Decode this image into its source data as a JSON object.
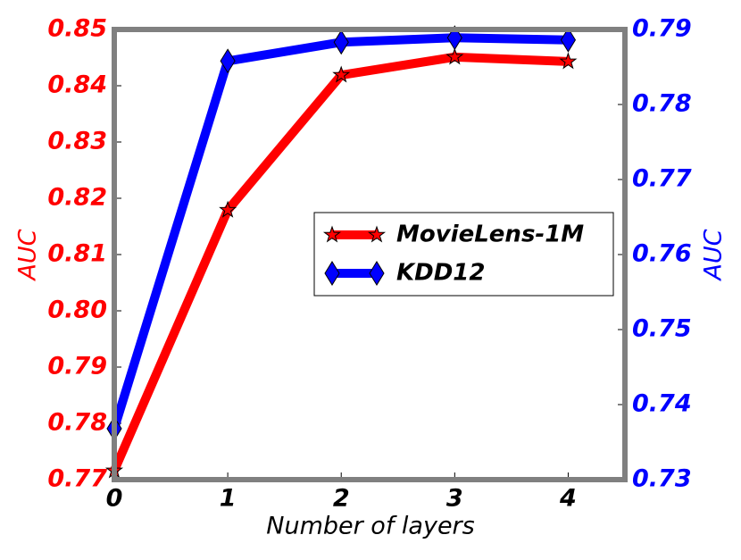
{
  "chart_data": {
    "type": "line",
    "x_label": "Number of layers",
    "y_label": "AUC",
    "y2_label": "AUC",
    "x": [
      0,
      1,
      2,
      3,
      4
    ],
    "xlim": [
      0,
      4.5
    ],
    "xticks": [
      0,
      1,
      2,
      3,
      4
    ],
    "ylim": [
      0.77,
      0.85
    ],
    "yticks": [
      0.77,
      0.78,
      0.79,
      {
        "value": 0.8,
        "label": "0.80"
      },
      0.81,
      0.82,
      0.83,
      0.84,
      0.85
    ],
    "y2lim": [
      0.73,
      0.79
    ],
    "y2ticks": [
      0.73,
      0.74,
      0.75,
      0.76,
      0.77,
      0.78,
      0.79
    ],
    "y_color": "#ff0000",
    "y2_color": "#0000ff",
    "legend": "center right",
    "series": [
      {
        "name": "MovieLens-1M",
        "color": "#ff0000",
        "marker": "star",
        "values": [
          0.7716,
          0.8179,
          0.8419,
          0.8451,
          0.8443
        ]
      },
      {
        "name": "KDD12",
        "color": "#0000ff",
        "marker": "diamond",
        "axis": "y2",
        "values": [
          0.7368,
          0.7858,
          0.7883,
          0.7889,
          0.7886
        ]
      }
    ]
  }
}
